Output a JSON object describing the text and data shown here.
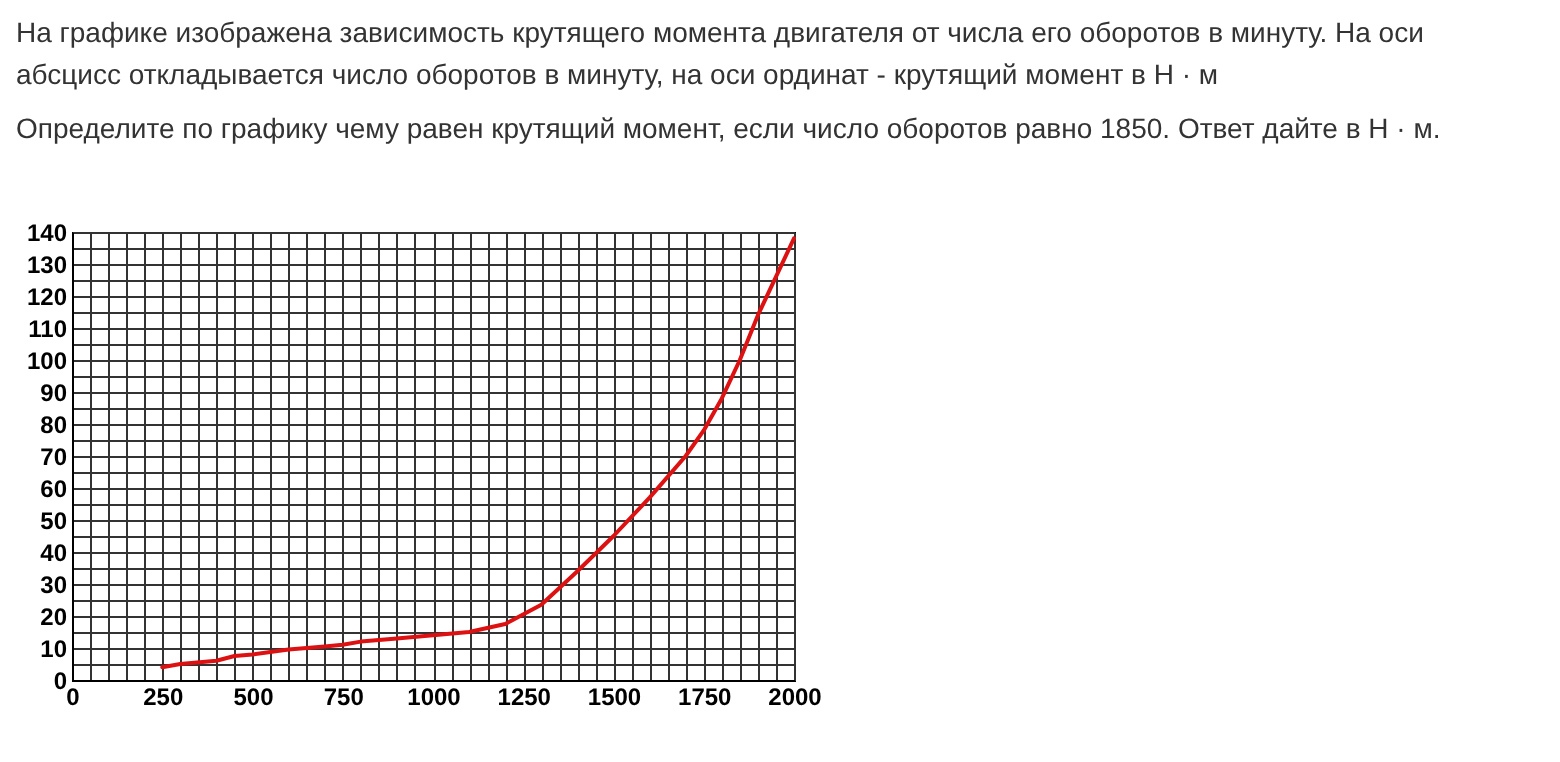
{
  "chart_data": {
    "type": "line",
    "title": "На графике изображена зависимость крутящего момента двигателя от числа его оборотов в минуту. На оси абсцисс откладывается число оборотов в минуту, на оси ординат - крутящий момент в Н · м",
    "subtitle": "Определите по графику чему равен крутящий момент, если число оборотов равно 1850. Ответ дайте в Н · м.",
    "x": [
      250,
      300,
      400,
      450,
      500,
      600,
      700,
      750,
      800,
      900,
      1000,
      1100,
      1200,
      1300,
      1400,
      1500,
      1600,
      1700,
      1750,
      1800,
      1850,
      1900,
      2000
    ],
    "series": [
      {
        "color": "#dd1111",
        "values": [
          4,
          5,
          6,
          7.5,
          8,
          9.5,
          10.5,
          11,
          12,
          13,
          14,
          15,
          17.5,
          23.5,
          34,
          45,
          57,
          70,
          78,
          88,
          100,
          114,
          138
        ]
      }
    ],
    "xlim": [
      0,
      2000
    ],
    "xticks": [
      0,
      {
        "value": 50,
        "label": null
      },
      {
        "value": 100,
        "label": null
      },
      {
        "value": 150,
        "label": null
      },
      {
        "value": 200,
        "label": null
      },
      250,
      {
        "value": 300,
        "label": null
      },
      {
        "value": 350,
        "label": null
      },
      {
        "value": 400,
        "label": null
      },
      {
        "value": 450,
        "label": null
      },
      500,
      {
        "value": 550,
        "label": null
      },
      {
        "value": 600,
        "label": null
      },
      {
        "value": 650,
        "label": null
      },
      {
        "value": 700,
        "label": null
      },
      750,
      {
        "value": 800,
        "label": null
      },
      {
        "value": 850,
        "label": null
      },
      {
        "value": 900,
        "label": null
      },
      {
        "value": 950,
        "label": null
      },
      1000,
      {
        "value": 1050,
        "label": null
      },
      {
        "value": 1100,
        "label": null
      },
      {
        "value": 1150,
        "label": null
      },
      {
        "value": 1200,
        "label": null
      },
      1250,
      {
        "value": 1300,
        "label": null
      },
      {
        "value": 1350,
        "label": null
      },
      {
        "value": 1400,
        "label": null
      },
      {
        "value": 1450,
        "label": null
      },
      1500,
      {
        "value": 1550,
        "label": null
      },
      {
        "value": 1600,
        "label": null
      },
      {
        "value": 1650,
        "label": null
      },
      {
        "value": 1700,
        "label": null
      },
      1750,
      {
        "value": 1800,
        "label": null
      },
      {
        "value": 1850,
        "label": null
      },
      {
        "value": 1900,
        "label": null
      },
      {
        "value": 1950,
        "label": null
      },
      2000
    ],
    "ylim": [
      0,
      140
    ],
    "yticks": [
      0,
      {
        "value": 5,
        "label": null
      },
      10,
      {
        "value": 15,
        "label": null
      },
      20,
      {
        "value": 25,
        "label": null
      },
      30,
      {
        "value": 35,
        "label": null
      },
      40,
      {
        "value": 45,
        "label": null
      },
      50,
      {
        "value": 55,
        "label": null
      },
      60,
      {
        "value": 65,
        "label": null
      },
      70,
      {
        "value": 75,
        "label": null
      },
      80,
      {
        "value": 85,
        "label": null
      },
      90,
      {
        "value": 95,
        "label": null
      },
      100,
      {
        "value": 105,
        "label": null
      },
      110,
      {
        "value": 115,
        "label": null
      },
      120,
      {
        "value": 125,
        "label": null
      },
      130,
      {
        "value": 135,
        "label": null
      },
      140
    ],
    "grid": true,
    "marker": "none",
    "line_style": "solid"
  }
}
